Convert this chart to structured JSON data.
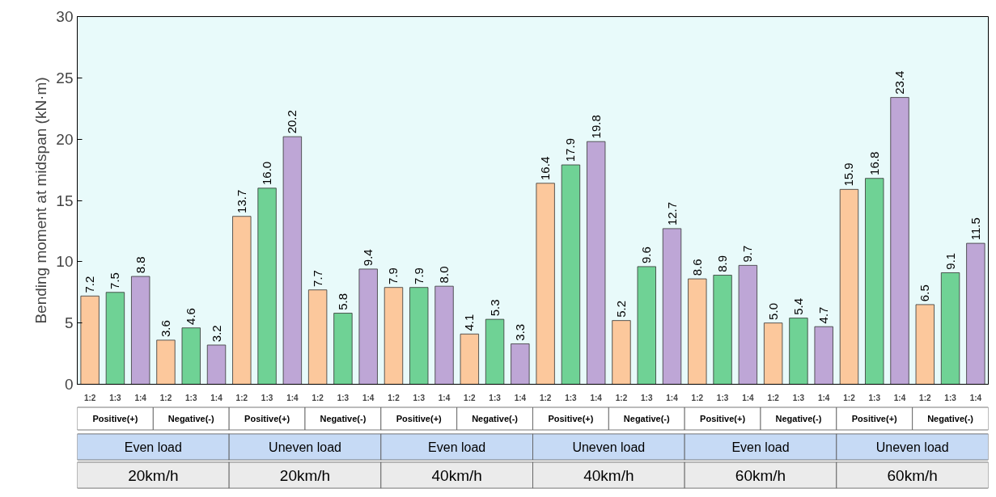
{
  "chart_data": {
    "type": "bar",
    "ylabel": "Bending moment at midspan (kN·m)",
    "categories": [
      "1:2",
      "1:3",
      "1:4",
      "1:2",
      "1:3",
      "1:4",
      "1:2",
      "1:3",
      "1:4",
      "1:2",
      "1:3",
      "1:4",
      "1:2",
      "1:3",
      "1:4",
      "1:2",
      "1:3",
      "1:4",
      "1:2",
      "1:3",
      "1:4",
      "1:2",
      "1:3",
      "1:4",
      "1:2",
      "1:3",
      "1:4",
      "1:2",
      "1:3",
      "1:4",
      "1:2",
      "1:3",
      "1:4",
      "1:2",
      "1:3",
      "1:4"
    ],
    "values": [
      7.2,
      7.5,
      8.8,
      3.6,
      4.6,
      3.2,
      13.7,
      16.0,
      20.2,
      7.7,
      5.8,
      9.4,
      7.9,
      7.9,
      8.0,
      4.1,
      5.3,
      3.3,
      16.4,
      17.9,
      19.8,
      5.2,
      9.6,
      12.7,
      8.6,
      8.9,
      9.7,
      5.0,
      5.4,
      4.7,
      15.9,
      16.8,
      23.4,
      6.5,
      9.1,
      11.5
    ],
    "value_labels": [
      "7.2",
      "7.5",
      "8.8",
      "3.6",
      "4.6",
      "3.2",
      "13.7",
      "16.0",
      "20.2",
      "7.7",
      "5.8",
      "9.4",
      "7.9",
      "7.9",
      "8.0",
      "4.1",
      "5.3",
      "3.3",
      "16.4",
      "17.9",
      "19.8",
      "5.2",
      "9.6",
      "12.7",
      "8.6",
      "8.9",
      "9.7",
      "5.0",
      "5.4",
      "4.7",
      "15.9",
      "16.8",
      "23.4",
      "6.5",
      "9.1",
      "11.5"
    ],
    "colors": [
      "#fcc89c",
      "#6fd295",
      "#bea6d6",
      "#fcc89c",
      "#6fd295",
      "#bea6d6",
      "#fcc89c",
      "#6fd295",
      "#bea6d6",
      "#fcc89c",
      "#6fd295",
      "#bea6d6",
      "#fcc89c",
      "#6fd295",
      "#bea6d6",
      "#fcc89c",
      "#6fd295",
      "#bea6d6",
      "#fcc89c",
      "#6fd295",
      "#bea6d6",
      "#fcc89c",
      "#6fd295",
      "#bea6d6",
      "#fcc89c",
      "#6fd295",
      "#bea6d6",
      "#fcc89c",
      "#6fd295",
      "#bea6d6",
      "#fcc89c",
      "#6fd295",
      "#bea6d6",
      "#fcc89c",
      "#6fd295",
      "#bea6d6"
    ],
    "ylim": [
      0,
      30
    ],
    "yticks": [
      0,
      5,
      10,
      15,
      20,
      25,
      30
    ],
    "annotations": [
      "Positive(+)",
      "Negative(-)",
      "Positive(+)",
      "Negative(-)",
      "Positive(+)",
      "Negative(-)",
      "Positive(+)",
      "Negative(-)",
      "Positive(+)",
      "Negative(-)",
      "Positive(+)",
      "Negative(-)",
      "Even load",
      "Uneven load",
      "Even load",
      "Uneven load",
      "Even load",
      "Uneven load",
      "20km/h",
      "20km/h",
      "40km/h",
      "40km/h",
      "60km/h",
      "60km/h"
    ]
  }
}
